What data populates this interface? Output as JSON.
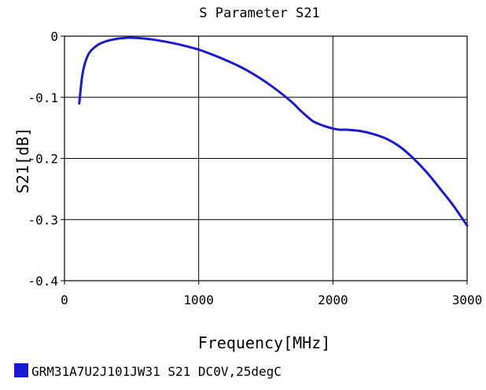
{
  "chart_data": {
    "type": "line",
    "title": "S Parameter S21",
    "xlabel": "Frequency[MHz]",
    "ylabel": "S21[dB]",
    "xlim": [
      0,
      3000
    ],
    "ylim": [
      -0.4,
      0
    ],
    "x_ticks": [
      0,
      1000,
      2000,
      3000
    ],
    "x_tick_labels": [
      "0",
      "1000",
      "2000",
      "3000"
    ],
    "y_ticks": [
      0,
      -0.1,
      -0.2,
      -0.3,
      -0.4
    ],
    "y_tick_labels": [
      "0",
      "-0.1",
      "-0.2",
      "-0.3",
      "-0.4"
    ],
    "grid": true,
    "legend_position": "bottom-left",
    "series": [
      {
        "name": "GRM31A7U2J101JW31 S21 DC0V,25degC",
        "color": "#1a1ad6",
        "x": [
          110,
          130,
          150,
          175,
          200,
          250,
          300,
          350,
          400,
          450,
          500,
          600,
          700,
          800,
          900,
          1000,
          1100,
          1200,
          1300,
          1400,
          1500,
          1600,
          1700,
          1750,
          1800,
          1850,
          1900,
          1950,
          2000,
          2050,
          2100,
          2200,
          2300,
          2400,
          2500,
          2600,
          2700,
          2800,
          2900,
          3000
        ],
        "y": [
          -0.11,
          -0.068,
          -0.046,
          -0.031,
          -0.023,
          -0.014,
          -0.009,
          -0.006,
          -0.004,
          -0.003,
          -0.0025,
          -0.004,
          -0.007,
          -0.011,
          -0.016,
          -0.022,
          -0.03,
          -0.039,
          -0.049,
          -0.061,
          -0.075,
          -0.091,
          -0.109,
          -0.12,
          -0.13,
          -0.139,
          -0.144,
          -0.148,
          -0.151,
          -0.153,
          -0.153,
          -0.155,
          -0.16,
          -0.168,
          -0.181,
          -0.2,
          -0.223,
          -0.25,
          -0.278,
          -0.31
        ]
      }
    ]
  }
}
